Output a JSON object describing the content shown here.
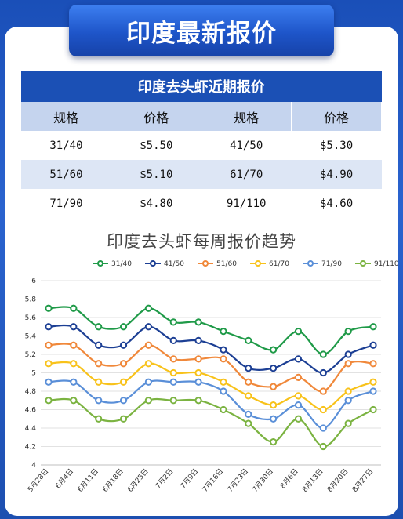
{
  "banner_title": "印度最新报价",
  "table": {
    "caption": "印度去头虾近期报价",
    "headers": [
      "规格",
      "价格",
      "规格",
      "价格"
    ],
    "rows": [
      [
        "31/40",
        "$5.50",
        "41/50",
        "$5.30"
      ],
      [
        "51/60",
        "$5.10",
        "61/70",
        "$4.90"
      ],
      [
        "71/90",
        "$4.80",
        "91/110",
        "$4.60"
      ]
    ]
  },
  "chart_data": {
    "type": "line",
    "title": "印度去头虾每周报价趋势",
    "categories": [
      "5月28日",
      "6月4日",
      "6月11日",
      "6月18日",
      "6月25日",
      "7月2日",
      "7月9日",
      "7月16日",
      "7月23日",
      "7月30日",
      "8月6日",
      "8月13日",
      "8月20日",
      "8月27日"
    ],
    "ylim": [
      4,
      6
    ],
    "yticks": [
      "4",
      "4.2",
      "4.4",
      "4.6",
      "4.8",
      "5",
      "5.2",
      "5.4",
      "5.6",
      "5.8",
      "6"
    ],
    "legend_position": "top",
    "grid": true,
    "series": [
      {
        "name": "31/40",
        "color": "#1f9a48",
        "values": [
          5.7,
          5.7,
          5.5,
          5.5,
          5.7,
          5.55,
          5.55,
          5.45,
          5.35,
          5.25,
          5.45,
          5.2,
          5.45,
          5.5
        ]
      },
      {
        "name": "41/50",
        "color": "#1c3f94",
        "values": [
          5.5,
          5.5,
          5.3,
          5.3,
          5.5,
          5.35,
          5.35,
          5.25,
          5.05,
          5.05,
          5.15,
          5.0,
          5.2,
          5.3
        ]
      },
      {
        "name": "51/60",
        "color": "#f0883a",
        "values": [
          5.3,
          5.3,
          5.1,
          5.1,
          5.3,
          5.15,
          5.15,
          5.15,
          4.9,
          4.85,
          4.95,
          4.8,
          5.1,
          5.1
        ]
      },
      {
        "name": "61/70",
        "color": "#f8c21a",
        "values": [
          5.1,
          5.1,
          4.9,
          4.9,
          5.1,
          5.0,
          5.0,
          4.9,
          4.75,
          4.65,
          4.75,
          4.6,
          4.8,
          4.9
        ]
      },
      {
        "name": "71/90",
        "color": "#5a8fd8",
        "values": [
          4.9,
          4.9,
          4.7,
          4.7,
          4.9,
          4.9,
          4.9,
          4.8,
          4.55,
          4.5,
          4.65,
          4.4,
          4.7,
          4.8
        ]
      },
      {
        "name": "91/110",
        "color": "#7bb341",
        "values": [
          4.7,
          4.7,
          4.5,
          4.5,
          4.7,
          4.7,
          4.7,
          4.6,
          4.45,
          4.25,
          4.5,
          4.2,
          4.45,
          4.6
        ]
      }
    ]
  }
}
